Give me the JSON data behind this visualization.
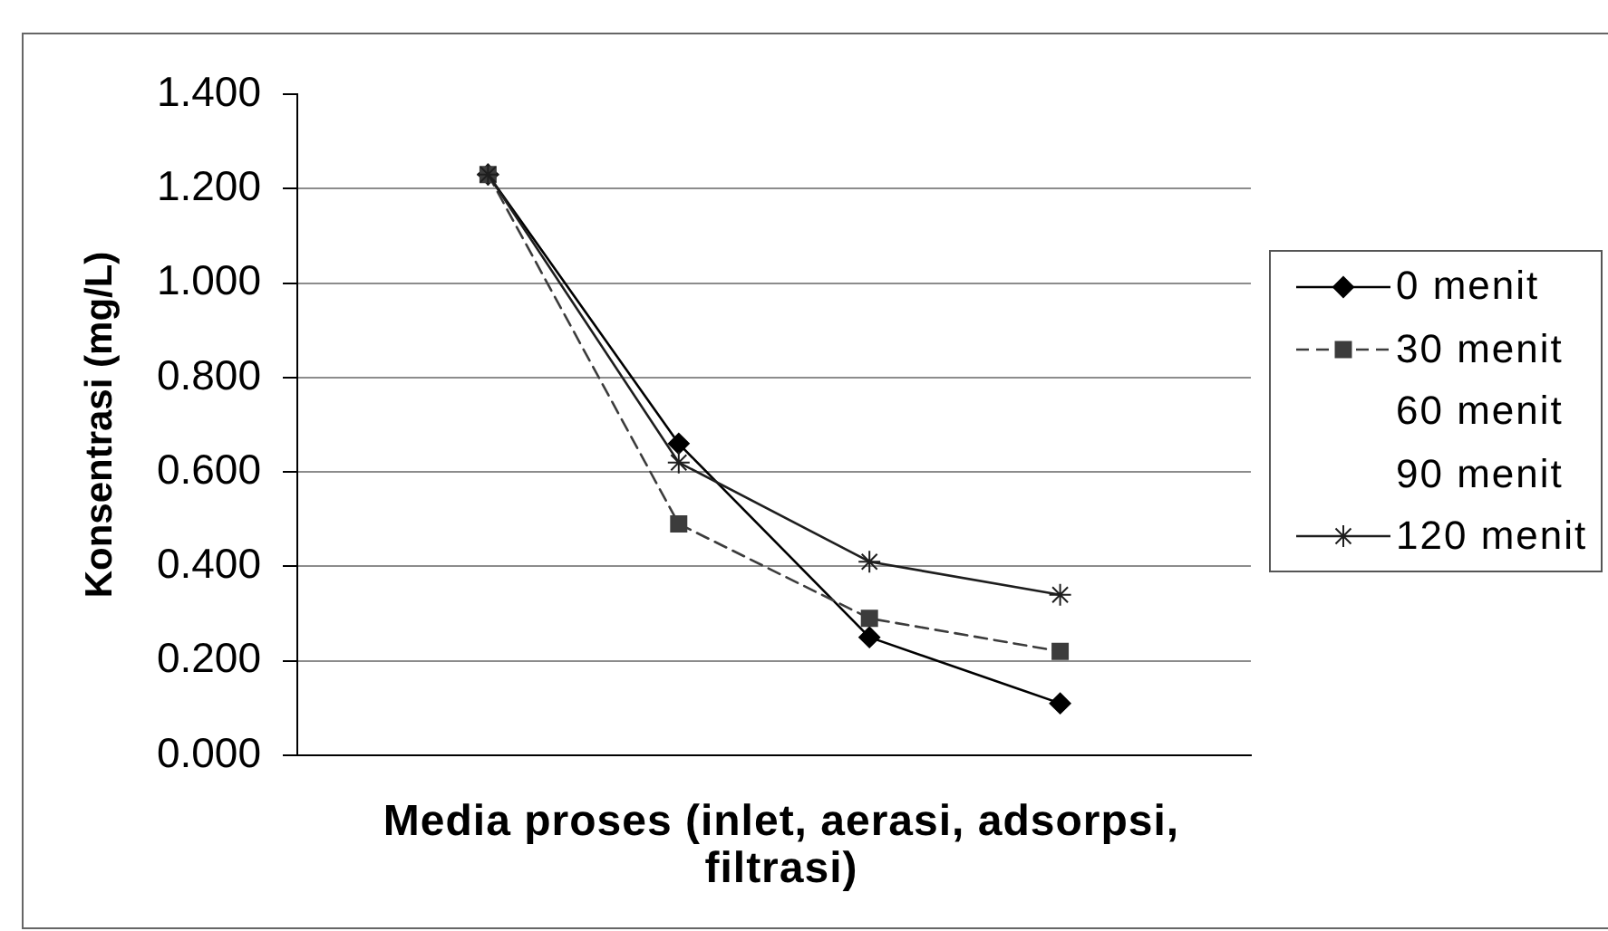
{
  "chart_data": {
    "type": "line",
    "xlabel": "Media proses (inlet, aerasi, adsorpsi, filtrasi)",
    "ylabel": "Konsentrasi (mg/L)",
    "categories": [
      null,
      null,
      null,
      null
    ],
    "series": [
      {
        "name": "0 menit",
        "color": "#000000",
        "marker": "diamond",
        "line_style": "solid",
        "values": [
          1.23,
          0.66,
          0.25,
          0.11
        ]
      },
      {
        "name": "30 menit",
        "color": "#3c3c3c",
        "marker": "square",
        "line_style": "dashed",
        "values": [
          1.23,
          0.49,
          0.29,
          0.22
        ]
      },
      {
        "name": "60 menit",
        "values": [
          null,
          null,
          null,
          null
        ]
      },
      {
        "name": "90 menit",
        "values": [
          null,
          null,
          null,
          null
        ]
      },
      {
        "name": "120 menit",
        "color": "#1e1e1e",
        "marker": "cross",
        "line_style": "solid",
        "values": [
          1.23,
          0.62,
          0.41,
          0.34
        ]
      }
    ],
    "ylim": [
      0,
      1.4
    ],
    "yticks": [
      {
        "value": 0,
        "label": "0.000"
      },
      {
        "value": 0.2,
        "label": "0.200"
      },
      {
        "value": 0.4,
        "label": "0.400"
      },
      {
        "value": 0.6,
        "label": "0.600"
      },
      {
        "value": 0.8,
        "label": "0.800"
      },
      {
        "value": 1,
        "label": "1.000"
      },
      {
        "value": 1.2,
        "label": "1.200"
      },
      {
        "value": 1.4,
        "label": "1.400"
      }
    ],
    "grid": "y",
    "legend": "right",
    "tick_labels": "y"
  }
}
